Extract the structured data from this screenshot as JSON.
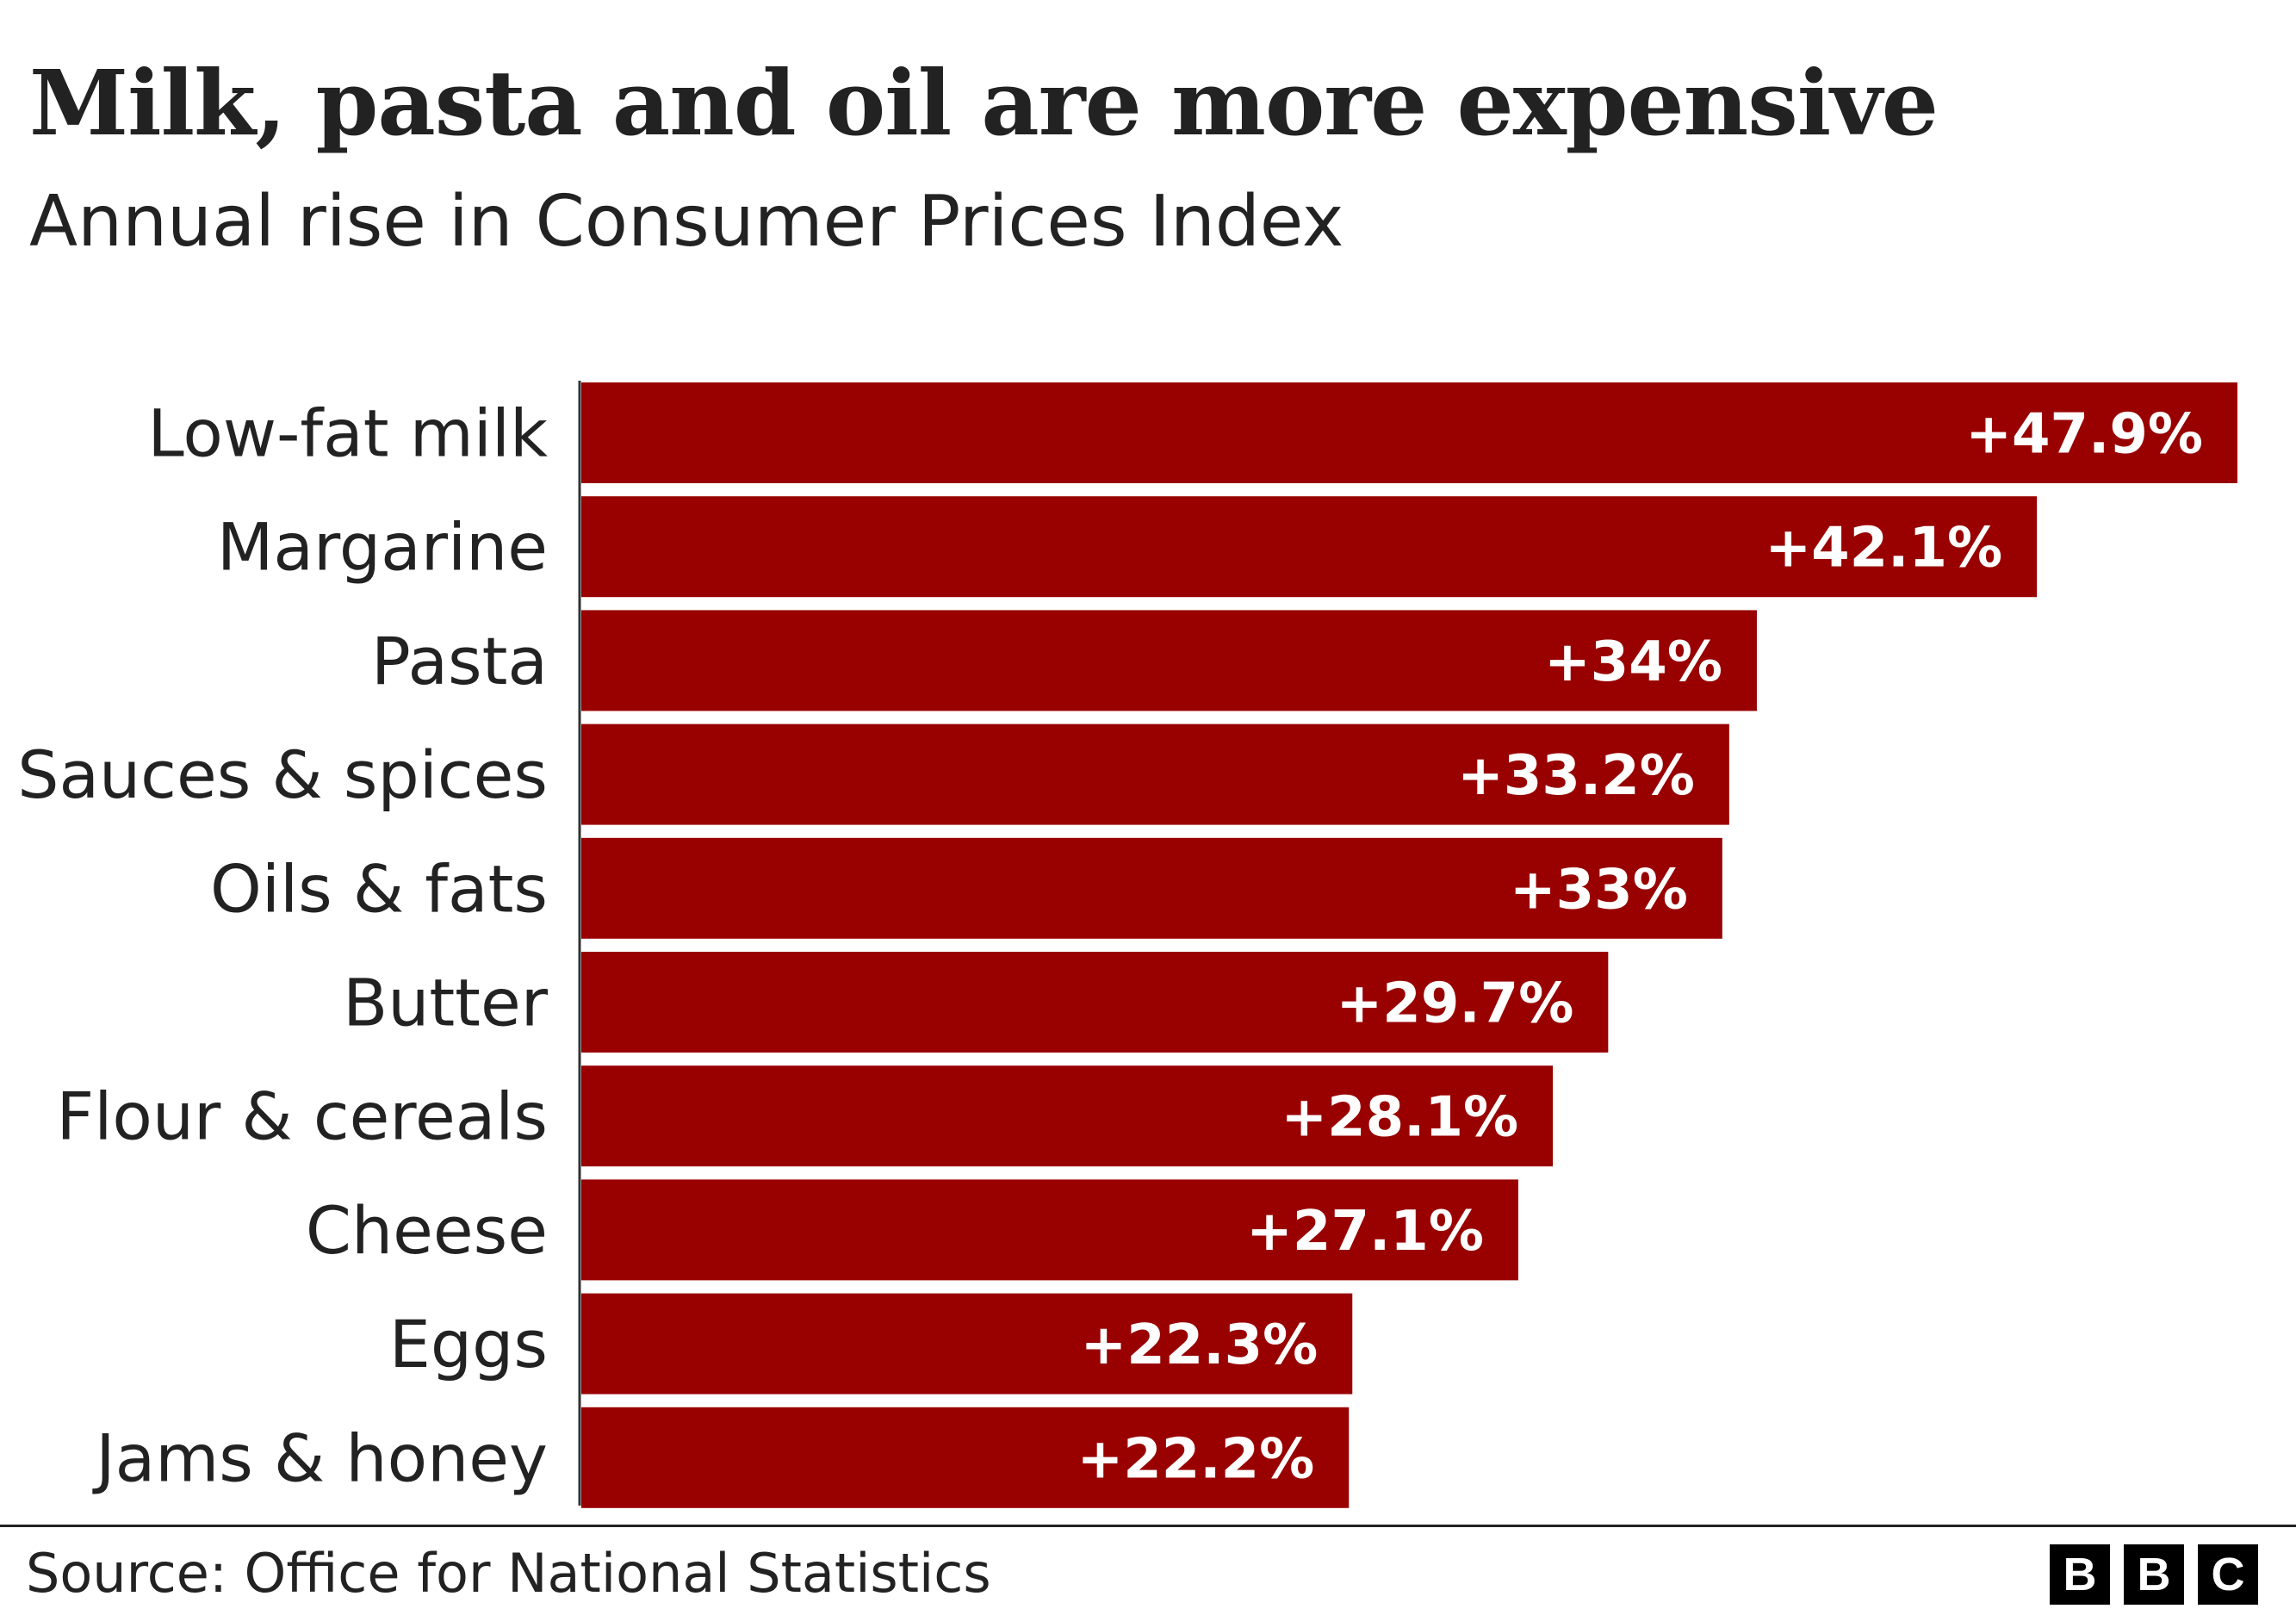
{
  "chart_data": {
    "type": "bar",
    "orientation": "horizontal",
    "title": "Milk, pasta and oil are more expensive",
    "subtitle": "Annual rise in Consumer Prices Index",
    "categories": [
      "Low-fat milk",
      "Margarine",
      "Pasta",
      "Sauces & spices",
      "Oils & fats",
      "Butter",
      "Flour & cereals",
      "Cheese",
      "Eggs",
      "Jams & honey"
    ],
    "values": [
      47.9,
      42.1,
      34,
      33.2,
      33,
      29.7,
      28.1,
      27.1,
      22.3,
      22.2
    ],
    "data_labels": [
      "+47.9%",
      "+42.1%",
      "+34%",
      "+33.2%",
      "+33%",
      "+29.7%",
      "+28.1%",
      "+27.1%",
      "+22.3%",
      "+22.2%"
    ],
    "xlabel": "",
    "ylabel": "",
    "xlim": [
      0,
      48
    ],
    "grid": false,
    "bar_color": "#990000"
  },
  "footer": {
    "source": "Source: Office for National Statistics",
    "logo": [
      "B",
      "B",
      "C"
    ]
  }
}
